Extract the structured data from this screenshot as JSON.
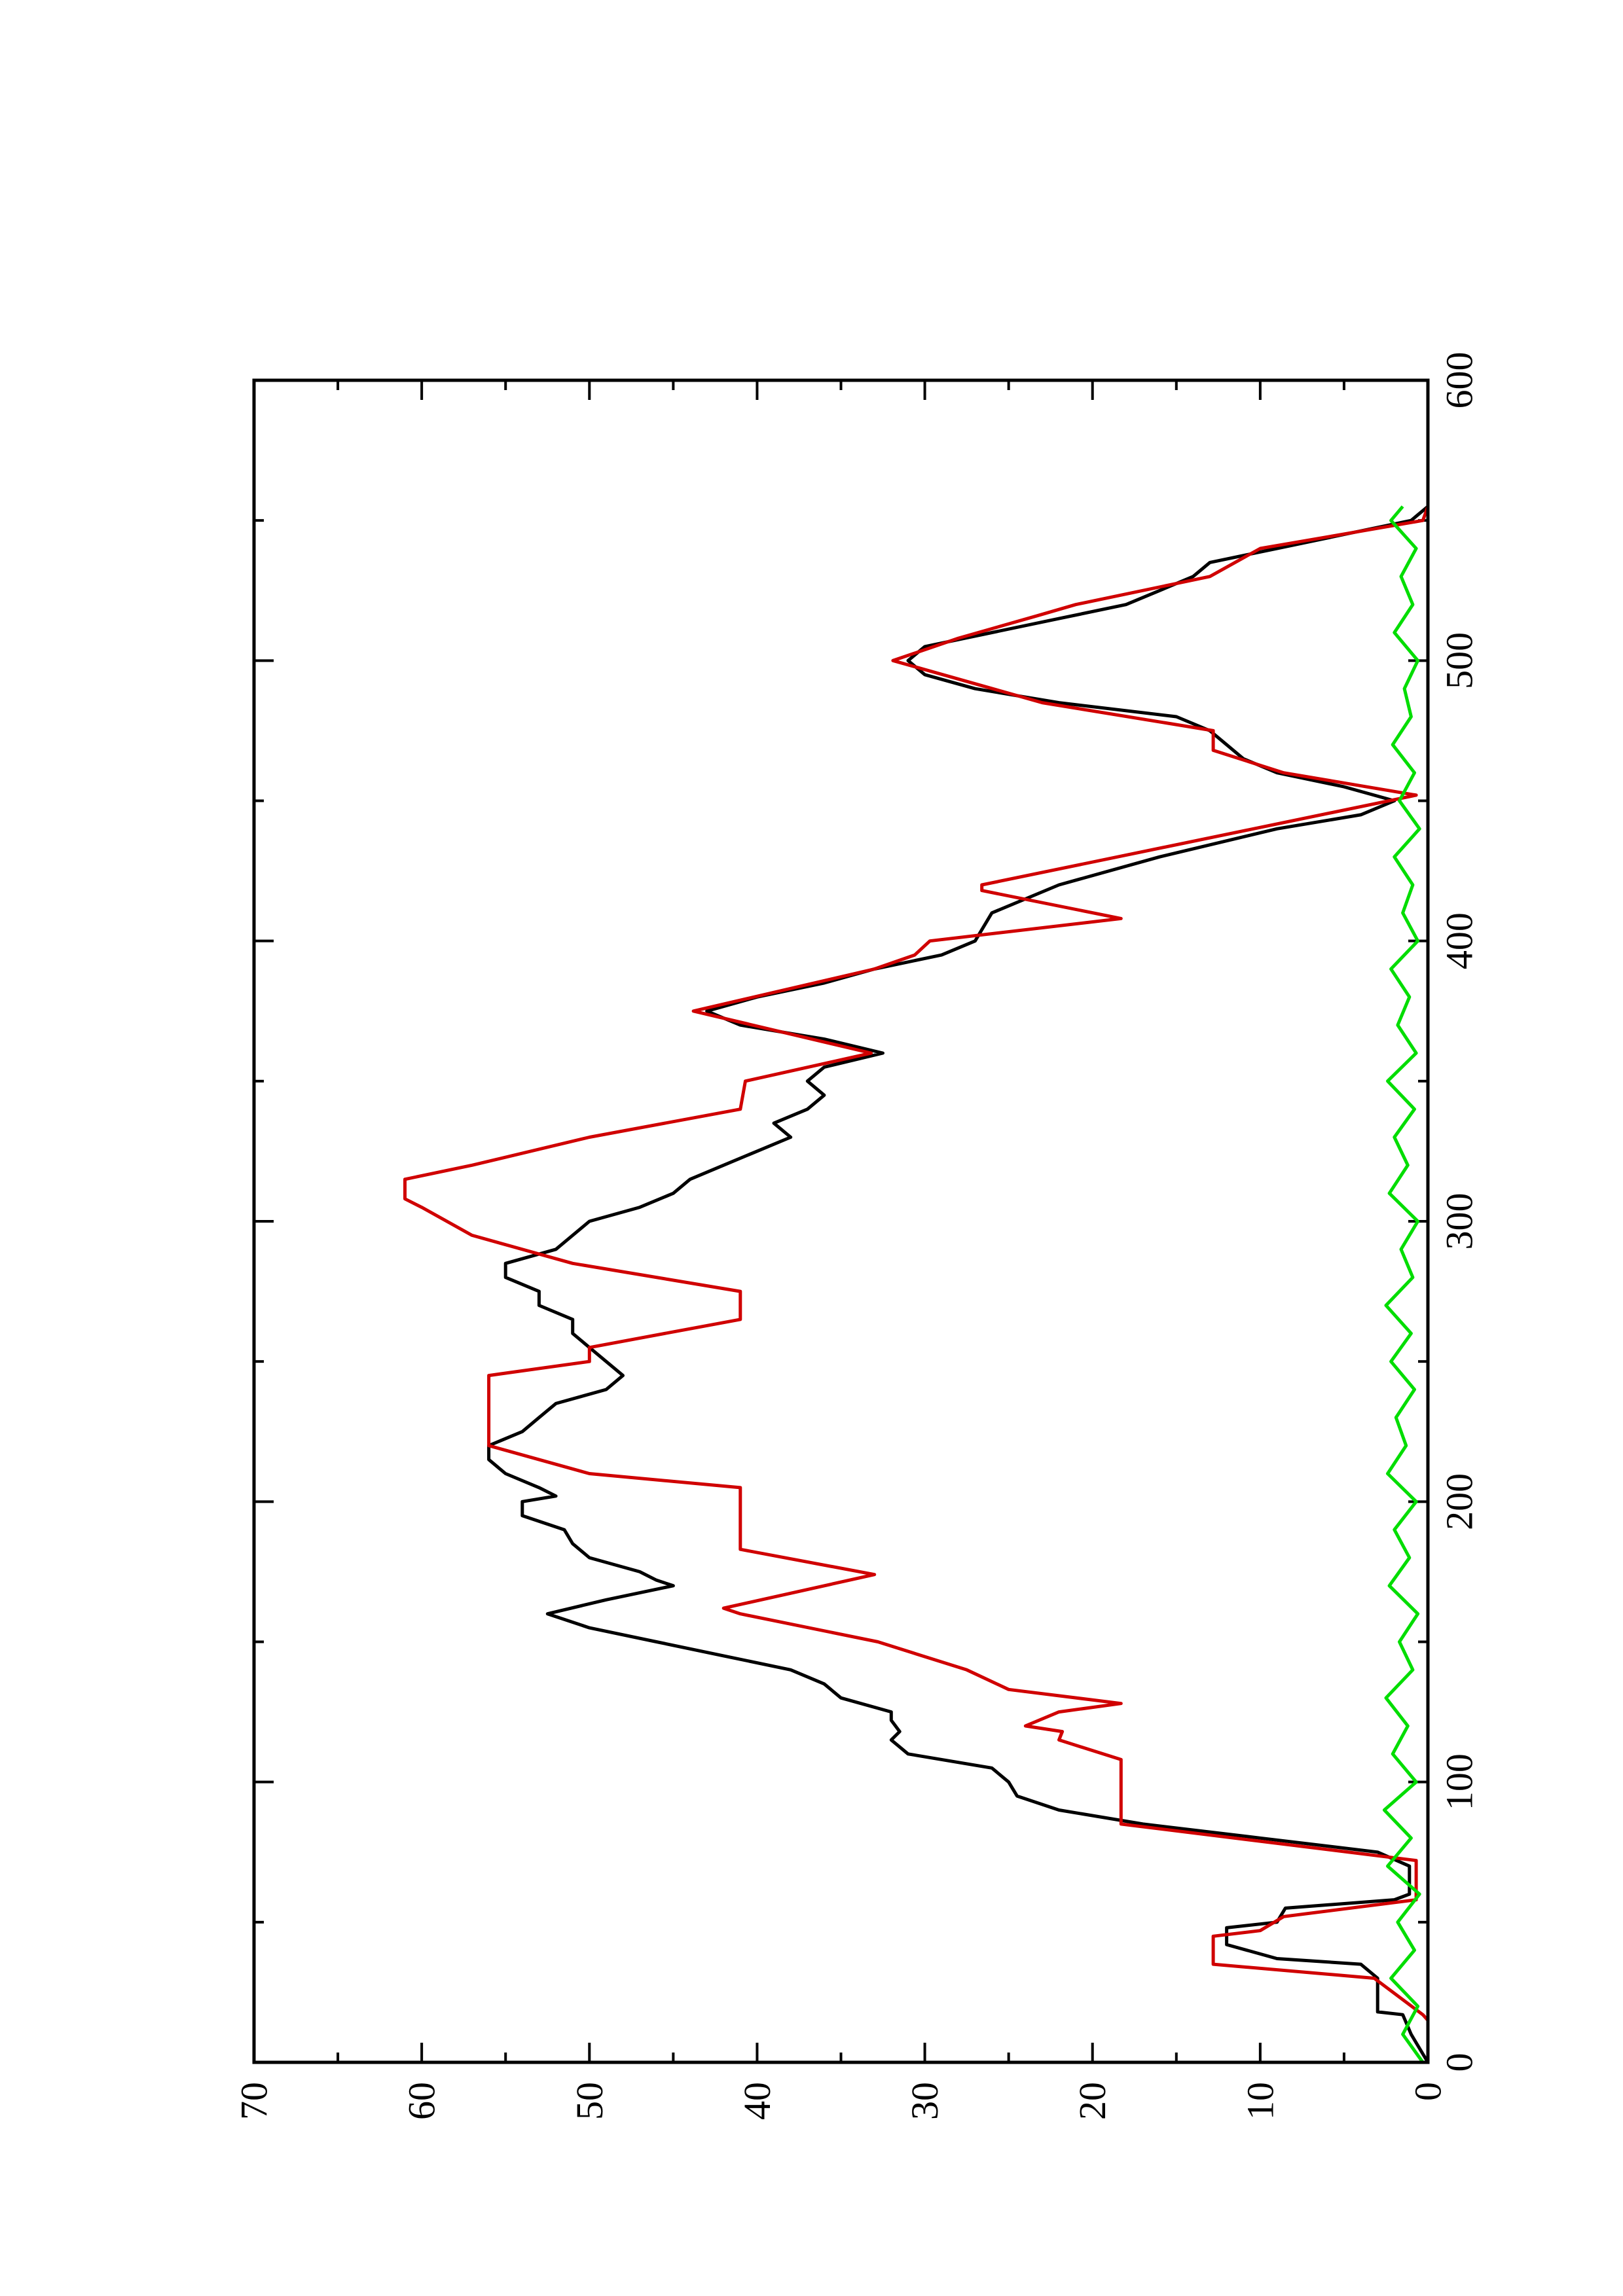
{
  "chart_data": {
    "type": "line",
    "orientation": "rotated",
    "xlim": [
      0,
      600
    ],
    "xticks": [
      0,
      100,
      200,
      300,
      400,
      500,
      600
    ],
    "xminorticks": [
      50,
      150,
      250,
      350,
      450,
      550
    ],
    "ylim": [
      0,
      70
    ],
    "yticks": [
      0,
      10,
      20,
      30,
      40,
      50,
      60,
      70
    ],
    "yminorticks": [
      5,
      15,
      25,
      35,
      45,
      55,
      65
    ],
    "series": [
      {
        "color": "#000000",
        "x": [
          0,
          10,
          17,
          18,
          30,
          35,
          37,
          42,
          48,
          50,
          55,
          58,
          60,
          70,
          75,
          80,
          85,
          90,
          95,
          100,
          105,
          110,
          115,
          118,
          122,
          125,
          130,
          135,
          140,
          145,
          150,
          155,
          160,
          165,
          170,
          172,
          175,
          180,
          185,
          190,
          195,
          200,
          202,
          205,
          210,
          215,
          220,
          225,
          230,
          235,
          240,
          245,
          250,
          255,
          260,
          265,
          270,
          275,
          280,
          285,
          290,
          300,
          305,
          310,
          315,
          320,
          325,
          330,
          335,
          340,
          345,
          350,
          355,
          360,
          365,
          370,
          375,
          380,
          385,
          390,
          395,
          400,
          410,
          420,
          430,
          440,
          445,
          450,
          455,
          460,
          465,
          470,
          475,
          480,
          485,
          490,
          495,
          500,
          505,
          510,
          515,
          520,
          525,
          530,
          535,
          540,
          545,
          550,
          555
        ],
        "values": [
          0,
          1,
          1.5,
          3,
          3,
          4,
          9,
          12,
          12,
          9,
          8.5,
          2,
          1.1,
          1.1,
          3,
          10,
          17,
          22,
          24.5,
          25,
          26,
          31,
          32,
          31.5,
          32,
          32,
          35,
          36,
          38,
          42,
          46,
          50,
          52.5,
          49,
          45,
          46,
          47,
          50,
          51,
          51.5,
          54,
          54,
          52,
          53,
          55,
          56,
          56,
          54,
          53,
          52,
          49,
          48,
          49,
          50,
          51,
          51,
          53,
          53,
          55,
          55,
          52,
          50,
          47,
          45,
          44,
          42,
          40,
          38,
          39,
          37,
          36,
          37,
          36,
          32.5,
          36,
          41,
          43,
          40,
          36,
          33,
          29,
          27,
          26,
          22,
          16,
          9,
          4,
          2,
          5,
          9,
          11,
          12,
          13,
          15,
          22,
          27,
          30,
          31,
          30,
          26,
          22,
          18,
          16,
          14,
          13,
          9,
          5,
          1,
          0
        ]
      },
      {
        "color": "#d00000",
        "x": [
          15,
          17,
          30,
          35,
          45,
          47,
          52,
          58,
          72,
          85,
          108,
          115,
          118,
          120,
          125,
          128,
          133,
          140,
          150,
          160,
          162,
          174,
          183,
          205,
          210,
          220,
          245,
          250,
          255,
          265,
          275,
          285,
          295,
          305,
          308,
          315,
          320,
          330,
          340,
          350,
          360,
          375,
          390,
          395,
          400,
          408,
          418,
          420,
          440,
          452,
          460,
          468,
          475,
          485,
          500,
          508,
          516,
          520,
          530,
          540,
          550,
          555
        ],
        "values": [
          0,
          0.3,
          3.2,
          12.8,
          12.8,
          10,
          8.6,
          0.7,
          0.7,
          18.3,
          18.3,
          22,
          21.8,
          24,
          22,
          18.3,
          25,
          27.5,
          32.8,
          41,
          42,
          33,
          41,
          41,
          50,
          56,
          56,
          50,
          50,
          41,
          41,
          51,
          57,
          60,
          61,
          61,
          57,
          50,
          41,
          40.7,
          33.2,
          43.8,
          33,
          30.6,
          29.7,
          18.3,
          26.6,
          26.6,
          10.4,
          0.7,
          8.6,
          12.8,
          12.8,
          23,
          31.9,
          28,
          23.3,
          21,
          13,
          10,
          0.3,
          0
        ]
      },
      {
        "color": "#00dd00",
        "x": [
          0,
          10,
          20,
          30,
          40,
          50,
          60,
          70,
          80,
          90,
          100,
          110,
          120,
          130,
          140,
          150,
          160,
          170,
          180,
          190,
          200,
          210,
          220,
          230,
          240,
          250,
          260,
          270,
          280,
          290,
          300,
          310,
          320,
          330,
          340,
          350,
          360,
          370,
          380,
          390,
          400,
          410,
          420,
          430,
          440,
          450,
          460,
          470,
          480,
          490,
          500,
          510,
          520,
          530,
          540,
          550,
          555
        ],
        "values": [
          0.3,
          1.5,
          0.6,
          2.2,
          0.8,
          1.8,
          0.5,
          2.4,
          1,
          2.6,
          0.7,
          2.1,
          1.2,
          2.5,
          0.9,
          1.7,
          0.6,
          2.3,
          1.1,
          2,
          0.7,
          2.4,
          1.3,
          1.9,
          0.8,
          2.2,
          1,
          2.5,
          0.9,
          1.6,
          0.6,
          2.3,
          1.2,
          2,
          0.8,
          2.4,
          0.7,
          1.8,
          1.1,
          2.2,
          0.6,
          1.5,
          0.9,
          2,
          0.5,
          1.7,
          0.8,
          2.1,
          1,
          1.4,
          0.6,
          2,
          0.9,
          1.6,
          0.7,
          2.2,
          1.5
        ]
      }
    ]
  }
}
